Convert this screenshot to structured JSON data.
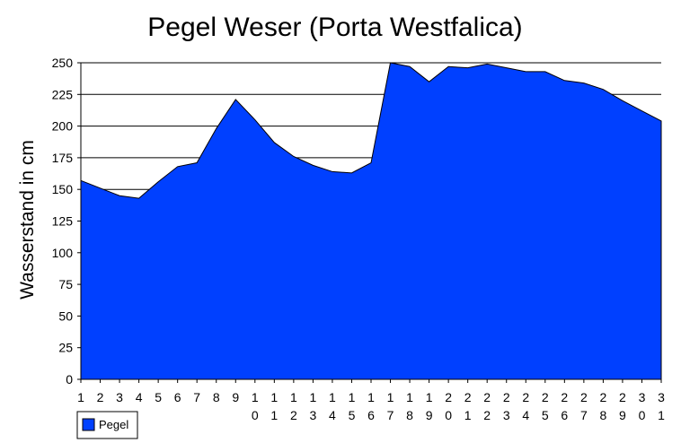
{
  "chart_data": {
    "type": "area",
    "title": "Pegel Weser (Porta Westfalica)",
    "xlabel": "",
    "ylabel": "Wasserstand in cm",
    "x": [
      "1",
      "2",
      "3",
      "4",
      "5",
      "6",
      "7",
      "8",
      "9",
      "10",
      "11",
      "12",
      "13",
      "14",
      "15",
      "16",
      "17",
      "18",
      "19",
      "20",
      "21",
      "22",
      "23",
      "24",
      "25",
      "26",
      "27",
      "28",
      "29",
      "30",
      "31"
    ],
    "series": [
      {
        "name": "Pegel",
        "color": "#0040ff",
        "values": [
          157,
          151,
          145,
          143,
          156,
          168,
          171,
          198,
          221,
          205,
          187,
          176,
          169,
          164,
          163,
          171,
          250,
          247,
          235,
          247,
          246,
          249,
          246,
          243,
          243,
          236,
          234,
          229,
          220,
          212,
          204
        ]
      }
    ],
    "ylim": [
      0,
      250
    ],
    "yticks": [
      0,
      25,
      50,
      75,
      100,
      125,
      150,
      175,
      200,
      225,
      250
    ],
    "grid": true,
    "legend": "bottom-left"
  }
}
